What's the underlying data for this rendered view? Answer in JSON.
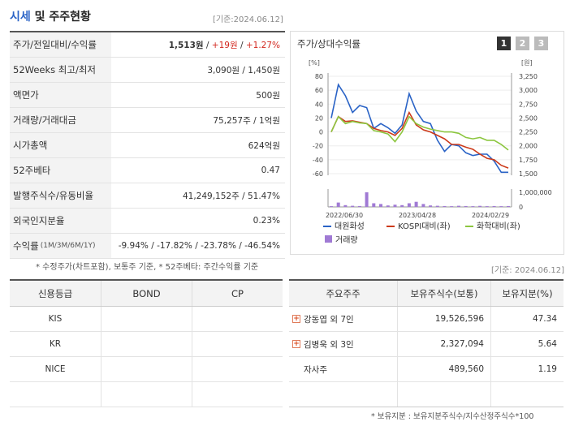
{
  "header": {
    "title_part1": "시세",
    "title_part2": " 및 주주현황",
    "as_of": "[기준:2024.06.12]"
  },
  "info": {
    "price_label": "주가/전일대비/수익률",
    "price": "1,513원",
    "change": "+19원",
    "change_pct": "+1.27%",
    "w52_label": "52Weeks 최고/최저",
    "w52_value": "3,090원 / 1,450원",
    "par_label": "액면가",
    "par_value": "500원",
    "volume_label": "거래량/거래대금",
    "volume_value": "75,257주 / 1억원",
    "mcap_label": "시가총액",
    "mcap_value": "624억원",
    "beta_label": "52주베타",
    "beta_value": "0.47",
    "shares_label": "발행주식수/유동비율",
    "shares_value": "41,249,152주 / 51.47%",
    "foreign_label": "외국인지분율",
    "foreign_value": "0.23%",
    "return_label": "수익률",
    "return_sub": "(1M/3M/6M/1Y)",
    "ret_1m": "-9.94%",
    "ret_3m": "-17.82%",
    "ret_6m": "-23.78%",
    "ret_1y": "-46.54%",
    "sep": " / "
  },
  "note_left": "* 수정주가(차트포함), 보통주 기준, * 52주베타: 주간수익률 기준",
  "chart_panel": {
    "title": "주가/상대수익률",
    "periods": [
      "1",
      "2",
      "3"
    ],
    "active_period": 0,
    "left_unit": "[%]",
    "right_unit": "[원]"
  },
  "chart_data": {
    "type": "line",
    "left_axis": {
      "min": -60,
      "max": 80,
      "ticks": [
        "80",
        "60",
        "40",
        "20",
        "0",
        "-20",
        "-40",
        "-60"
      ]
    },
    "right_axis": {
      "min": 1500,
      "max": 3250,
      "ticks": [
        "3,250",
        "3,000",
        "2,750",
        "2,500",
        "2,250",
        "2,000",
        "1,750",
        "1,500"
      ]
    },
    "volume_axis": {
      "min": 0,
      "max": 1000000,
      "ticks": [
        "1,000,000",
        "0"
      ]
    },
    "x_labels": [
      "2022/06/30",
      "2023/04/28",
      "2024/02/29"
    ],
    "series": [
      {
        "name": "대원화성",
        "color": "#2a63c6",
        "values": [
          20,
          68,
          52,
          28,
          38,
          35,
          5,
          12,
          6,
          -2,
          10,
          55,
          30,
          15,
          12,
          -12,
          -28,
          -18,
          -20,
          -30,
          -34,
          -32,
          -32,
          -42,
          -58,
          -58
        ]
      },
      {
        "name": "KOSPI대비(좌)",
        "color": "#cc3a1a",
        "values": [
          0,
          22,
          15,
          16,
          14,
          12,
          5,
          2,
          0,
          -5,
          5,
          28,
          10,
          3,
          0,
          -5,
          -10,
          -18,
          -18,
          -22,
          -25,
          -32,
          -38,
          -40,
          -48,
          -52
        ]
      },
      {
        "name": "화학대비(좌)",
        "color": "#8cc63f",
        "values": [
          0,
          22,
          12,
          15,
          13,
          12,
          2,
          0,
          -3,
          -14,
          0,
          22,
          12,
          7,
          4,
          2,
          0,
          0,
          -2,
          -8,
          -10,
          -8,
          -12,
          -12,
          -18,
          -26
        ]
      }
    ],
    "volume": {
      "name": "거래량",
      "color": "#a07ad4",
      "values": [
        0.05,
        0.3,
        0.12,
        0.08,
        0.06,
        1.0,
        0.25,
        0.2,
        0.1,
        0.15,
        0.12,
        0.25,
        0.35,
        0.2,
        0.1,
        0.08,
        0.06,
        0.05,
        0.08,
        0.06,
        0.05,
        0.07,
        0.05,
        0.06,
        0.05,
        0.06
      ]
    }
  },
  "as_of_mid": "[기준: 2024.06.12]",
  "credit": {
    "headers": [
      "신용등급",
      "BOND",
      "CP"
    ],
    "rows": [
      [
        "KIS",
        "",
        ""
      ],
      [
        "KR",
        "",
        ""
      ],
      [
        "NICE",
        "",
        ""
      ],
      [
        "",
        "",
        ""
      ]
    ]
  },
  "holders": {
    "headers": [
      "주요주주",
      "보유주식수(보통)",
      "보유지분(%)"
    ],
    "plus_icon": "+",
    "rows": [
      {
        "name": "강동엽 외 7인",
        "shares": "19,526,596",
        "pct": "47.34",
        "expand": true
      },
      {
        "name": "김병욱 외 3인",
        "shares": "2,327,094",
        "pct": "5.64",
        "expand": true
      },
      {
        "name": "자사주",
        "shares": "489,560",
        "pct": "1.19",
        "expand": false
      }
    ]
  },
  "note_right": "* 보유지분 : 보유지분주식수/지수산정주식수*100"
}
